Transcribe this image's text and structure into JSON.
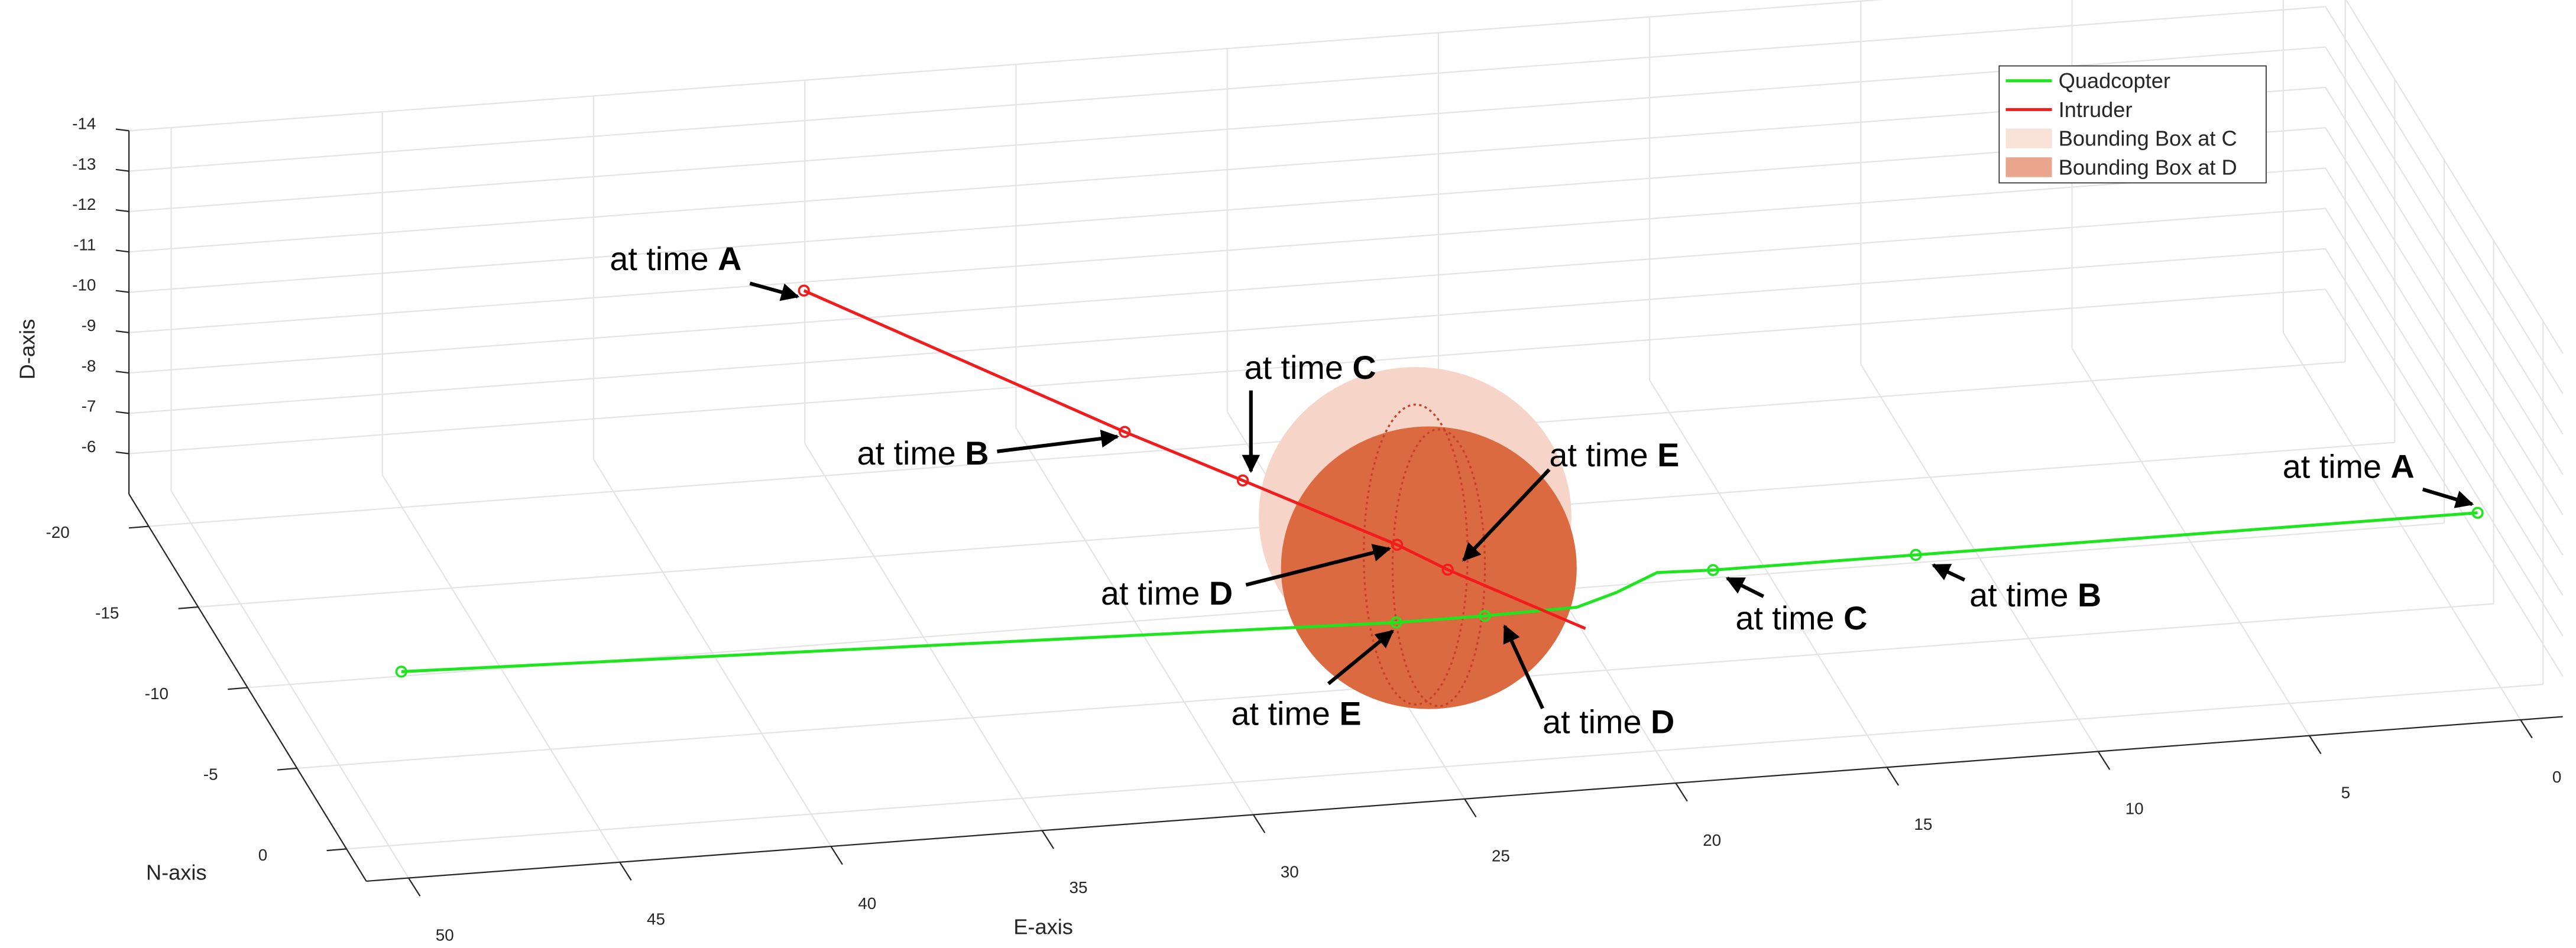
{
  "chart_data": {
    "type": "line3d",
    "xlabel": "E-axis",
    "ylabel": "N-axis",
    "zlabel": "D-axis",
    "xlim": [
      -1,
      51
    ],
    "ylim": [
      -22,
      2
    ],
    "zlim": [
      -14,
      -5
    ],
    "xticks": [
      0,
      5,
      10,
      15,
      20,
      25,
      30,
      35,
      40,
      45,
      50
    ],
    "yticks": [
      -20,
      -15,
      -10,
      -5,
      0
    ],
    "zticks": [
      -14,
      -13,
      -12,
      -11,
      -10,
      -9,
      -8,
      -7,
      -6
    ],
    "grid": true,
    "annotation_prefix": "at time",
    "series": [
      {
        "name": "Quadcopter",
        "color": "#1ee61e",
        "x": [
          50.1,
          26.9,
          24.8,
          22.6,
          21.5,
          20.3,
          19.0,
          14.2,
          0.9
        ],
        "y": [
          1.7,
          3.2,
          3.2,
          3.1,
          2.4,
          1.4,
          1.5,
          1.5,
          1.5
        ],
        "z": [
          -10,
          -10,
          -10,
          -10,
          -10,
          -10,
          -10,
          -10,
          -10
        ],
        "markers": [
          true,
          true,
          true,
          false,
          false,
          false,
          true,
          true,
          true
        ],
        "labels": [
          null,
          "E",
          "D",
          null,
          null,
          null,
          "C",
          "B",
          "A"
        ]
      },
      {
        "name": "Intruder",
        "color": "#f21c1c",
        "x": [
          35.7,
          30.4,
          28.4,
          25.8,
          25.0,
          22.7
        ],
        "y": [
          -19.1,
          -9.3,
          -5.9,
          -1.4,
          0.3,
          4.4
        ],
        "z": [
          -10,
          -10,
          -10,
          -10,
          -10,
          -10
        ],
        "markers": [
          true,
          true,
          true,
          true,
          true,
          false
        ],
        "labels": [
          "A",
          "B",
          "C",
          "D",
          "E",
          null
        ]
      }
    ],
    "spheres": [
      {
        "name": "Bounding Box at C",
        "color": "#f6d5c8",
        "x": 25.0,
        "y": -3.0,
        "z": -10,
        "radius": 3.7
      },
      {
        "name": "Bounding Box at D",
        "color": "#dc6a40",
        "x": 25.4,
        "y": 0.1,
        "z": -10,
        "radius": 3.5
      }
    ]
  }
}
